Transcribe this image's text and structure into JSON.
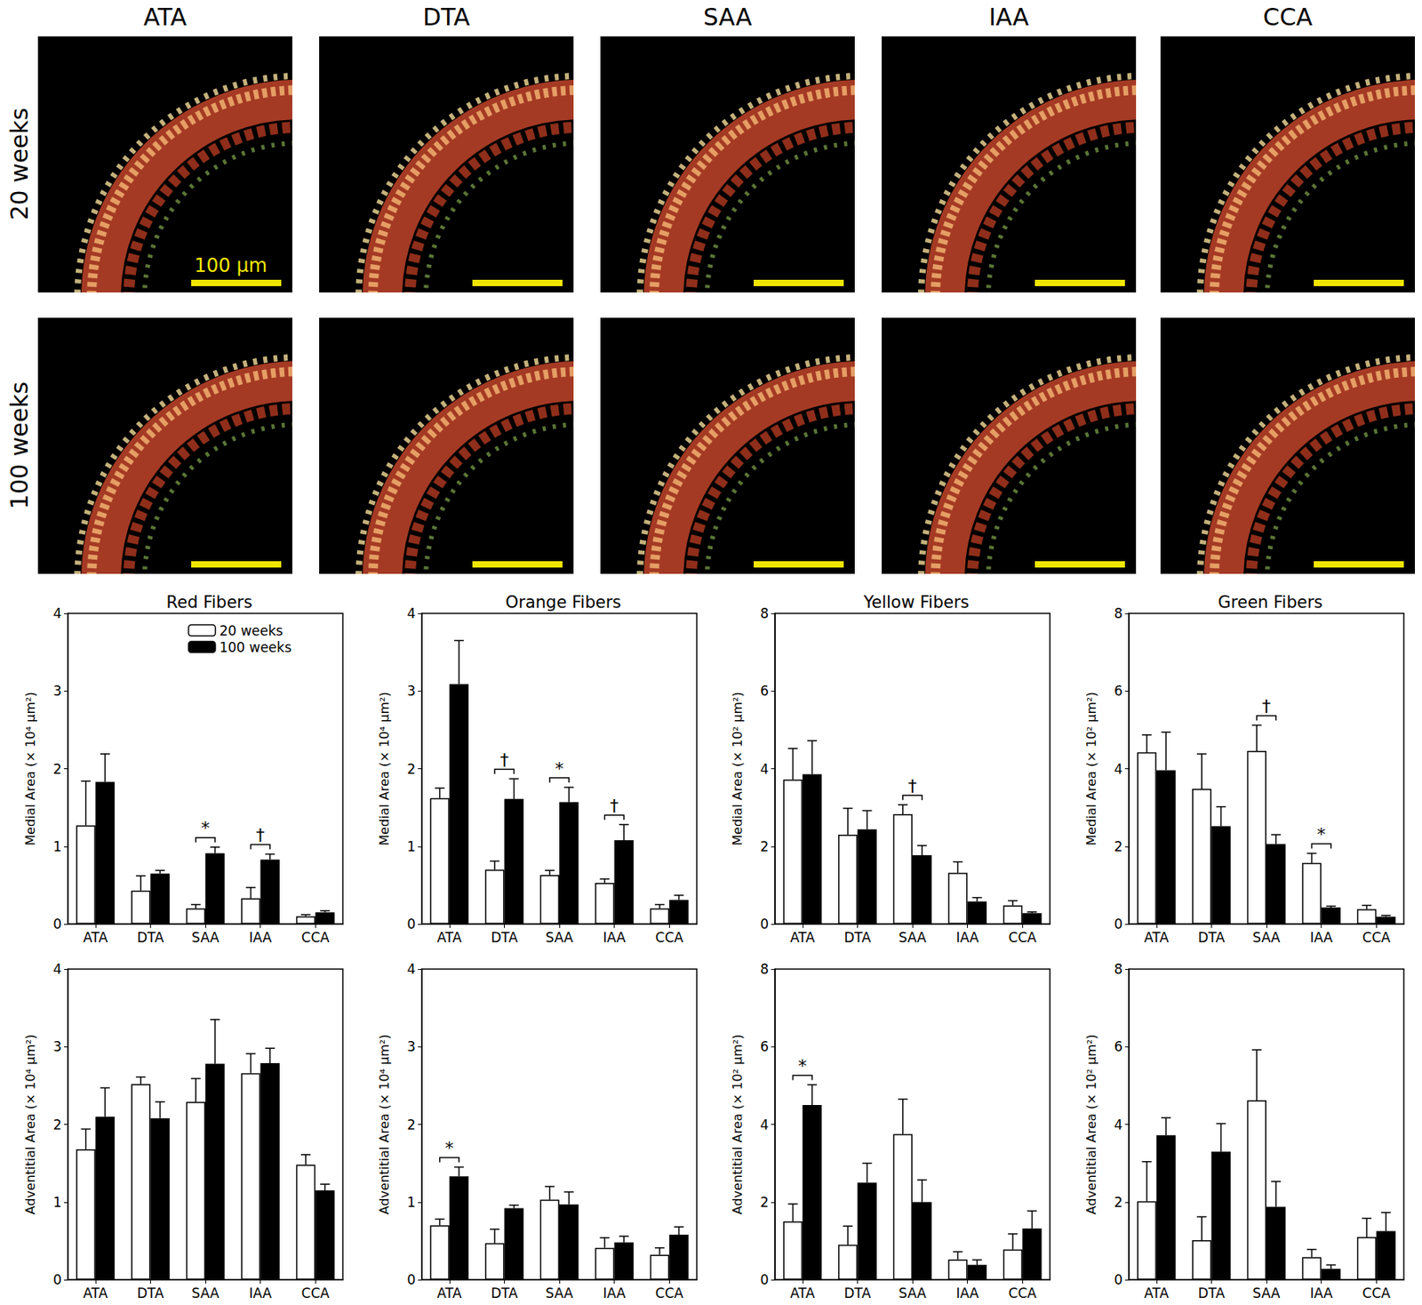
{
  "figure_panels": {
    "columns": [
      "ATA",
      "DTA",
      "SAA",
      "IAA",
      "CCA"
    ],
    "rows": [
      "20 weeks",
      "100 weeks"
    ],
    "scale_bar": "100 µm"
  },
  "chart_data": [
    {
      "type": "bar",
      "title": "Red Fibers",
      "y_label": "Medial Area (× 10⁴ µm²)",
      "categories": [
        "ATA",
        "DTA",
        "SAA",
        "IAA",
        "CCA"
      ],
      "series": [
        {
          "name": "20 weeks",
          "color": "#ffffff",
          "values": [
            1.27,
            0.43,
            0.2,
            0.33,
            0.1
          ],
          "errors": [
            0.57,
            0.19,
            0.05,
            0.14,
            0.02
          ]
        },
        {
          "name": "100 weeks",
          "color": "#000000",
          "values": [
            1.83,
            0.65,
            0.91,
            0.83,
            0.15
          ],
          "errors": [
            0.36,
            0.04,
            0.08,
            0.07,
            0.02
          ]
        }
      ],
      "annotations": [
        {
          "category": "SAA",
          "text": "*"
        },
        {
          "category": "IAA",
          "text": "†"
        }
      ],
      "ylim": [
        0,
        4
      ],
      "yticks": [
        0,
        1,
        2,
        3,
        4
      ],
      "grid": false,
      "legend": "upper right"
    },
    {
      "type": "bar",
      "title": "Orange Fibers",
      "y_label": "Medial Area (× 10⁴ µm²)",
      "categories": [
        "ATA",
        "DTA",
        "SAA",
        "IAA",
        "CCA"
      ],
      "series": [
        {
          "name": "20 weeks",
          "color": "#ffffff",
          "values": [
            1.62,
            0.7,
            0.63,
            0.53,
            0.2
          ],
          "errors": [
            0.13,
            0.11,
            0.06,
            0.05,
            0.05
          ]
        },
        {
          "name": "100 weeks",
          "color": "#000000",
          "values": [
            3.09,
            1.61,
            1.57,
            1.08,
            0.31
          ],
          "errors": [
            0.56,
            0.26,
            0.19,
            0.2,
            0.06
          ]
        }
      ],
      "annotations": [
        {
          "category": "DTA",
          "text": "†"
        },
        {
          "category": "SAA",
          "text": "*"
        },
        {
          "category": "IAA",
          "text": "†"
        }
      ],
      "ylim": [
        0,
        4
      ],
      "yticks": [
        0,
        1,
        2,
        3,
        4
      ],
      "grid": false
    },
    {
      "type": "bar",
      "title": "Yellow Fibers",
      "y_label": "Medial Area (× 10² µm²)",
      "categories": [
        "ATA",
        "DTA",
        "SAA",
        "IAA",
        "CCA"
      ],
      "series": [
        {
          "name": "20 weeks",
          "color": "#ffffff",
          "values": [
            3.72,
            2.3,
            2.83,
            1.32,
            0.48
          ],
          "errors": [
            0.8,
            0.68,
            0.24,
            0.28,
            0.12
          ]
        },
        {
          "name": "100 weeks",
          "color": "#000000",
          "values": [
            3.86,
            2.44,
            1.77,
            0.58,
            0.28
          ],
          "errors": [
            0.86,
            0.48,
            0.25,
            0.1,
            0.03
          ]
        }
      ],
      "annotations": [
        {
          "category": "SAA",
          "text": "†"
        }
      ],
      "ylim": [
        0,
        8
      ],
      "yticks": [
        0,
        2,
        4,
        6,
        8
      ],
      "grid": false
    },
    {
      "type": "bar",
      "title": "Green Fibers",
      "y_label": "Medial Area (× 10² µm²)",
      "categories": [
        "ATA",
        "DTA",
        "SAA",
        "IAA",
        "CCA"
      ],
      "series": [
        {
          "name": "20 weeks",
          "color": "#ffffff",
          "values": [
            4.42,
            3.48,
            4.46,
            1.57,
            0.38
          ],
          "errors": [
            0.45,
            0.9,
            0.66,
            0.25,
            0.1
          ]
        },
        {
          "name": "100 weeks",
          "color": "#000000",
          "values": [
            3.96,
            2.52,
            2.06,
            0.43,
            0.19
          ],
          "errors": [
            0.98,
            0.5,
            0.24,
            0.03,
            0.03
          ]
        }
      ],
      "annotations": [
        {
          "category": "SAA",
          "text": "†"
        },
        {
          "category": "IAA",
          "text": "*"
        }
      ],
      "ylim": [
        0,
        8
      ],
      "yticks": [
        0,
        2,
        4,
        6,
        8
      ],
      "grid": false
    },
    {
      "type": "bar",
      "y_label": "Adventitial Area (× 10⁴ µm²)",
      "categories": [
        "ATA",
        "DTA",
        "SAA",
        "IAA",
        "CCA"
      ],
      "series": [
        {
          "name": "20 weeks",
          "color": "#ffffff",
          "values": [
            1.68,
            2.52,
            2.29,
            2.66,
            1.48
          ],
          "errors": [
            0.26,
            0.09,
            0.3,
            0.25,
            0.13
          ]
        },
        {
          "name": "100 weeks",
          "color": "#000000",
          "values": [
            2.1,
            2.08,
            2.78,
            2.79,
            1.15
          ],
          "errors": [
            0.37,
            0.21,
            0.57,
            0.19,
            0.08
          ]
        }
      ],
      "annotations": [],
      "ylim": [
        0,
        4
      ],
      "yticks": [
        0,
        1,
        2,
        3,
        4
      ],
      "grid": false
    },
    {
      "type": "bar",
      "y_label": "Adventitial Area (× 10⁴ µm²)",
      "categories": [
        "ATA",
        "DTA",
        "SAA",
        "IAA",
        "CCA"
      ],
      "series": [
        {
          "name": "20 weeks",
          "color": "#ffffff",
          "values": [
            0.7,
            0.47,
            1.03,
            0.41,
            0.32
          ],
          "errors": [
            0.08,
            0.18,
            0.17,
            0.13,
            0.09
          ]
        },
        {
          "name": "100 weeks",
          "color": "#000000",
          "values": [
            1.33,
            0.92,
            0.97,
            0.48,
            0.58
          ],
          "errors": [
            0.12,
            0.04,
            0.16,
            0.08,
            0.1
          ]
        }
      ],
      "annotations": [
        {
          "category": "ATA",
          "text": "*"
        }
      ],
      "ylim": [
        0,
        4
      ],
      "yticks": [
        0,
        1,
        2,
        3,
        4
      ],
      "grid": false
    },
    {
      "type": "bar",
      "y_label": "Adventitial Area (× 10² µm²)",
      "categories": [
        "ATA",
        "DTA",
        "SAA",
        "IAA",
        "CCA"
      ],
      "series": [
        {
          "name": "20 weeks",
          "color": "#ffffff",
          "values": [
            1.5,
            0.9,
            3.75,
            0.52,
            0.78
          ],
          "errors": [
            0.45,
            0.48,
            0.9,
            0.2,
            0.4
          ]
        },
        {
          "name": "100 weeks",
          "color": "#000000",
          "values": [
            4.5,
            2.5,
            2.0,
            0.38,
            1.32
          ],
          "errors": [
            0.52,
            0.5,
            0.57,
            0.13,
            0.45
          ]
        }
      ],
      "annotations": [
        {
          "category": "ATA",
          "text": "*"
        }
      ],
      "ylim": [
        0,
        8
      ],
      "yticks": [
        0,
        2,
        4,
        6,
        8
      ],
      "grid": false
    },
    {
      "type": "bar",
      "y_label": "Adventitial Area (× 10² µm²)",
      "categories": [
        "ATA",
        "DTA",
        "SAA",
        "IAA",
        "CCA"
      ],
      "series": [
        {
          "name": "20 weeks",
          "color": "#ffffff",
          "values": [
            2.02,
            1.02,
            4.62,
            0.58,
            1.1
          ],
          "errors": [
            1.02,
            0.6,
            1.3,
            0.2,
            0.48
          ]
        },
        {
          "name": "100 weeks",
          "color": "#000000",
          "values": [
            3.72,
            3.3,
            1.88,
            0.28,
            1.25
          ],
          "errors": [
            0.45,
            0.72,
            0.65,
            0.1,
            0.48
          ]
        }
      ],
      "annotations": [],
      "ylim": [
        0,
        8
      ],
      "yticks": [
        0,
        2,
        4,
        6,
        8
      ],
      "grid": false
    }
  ]
}
